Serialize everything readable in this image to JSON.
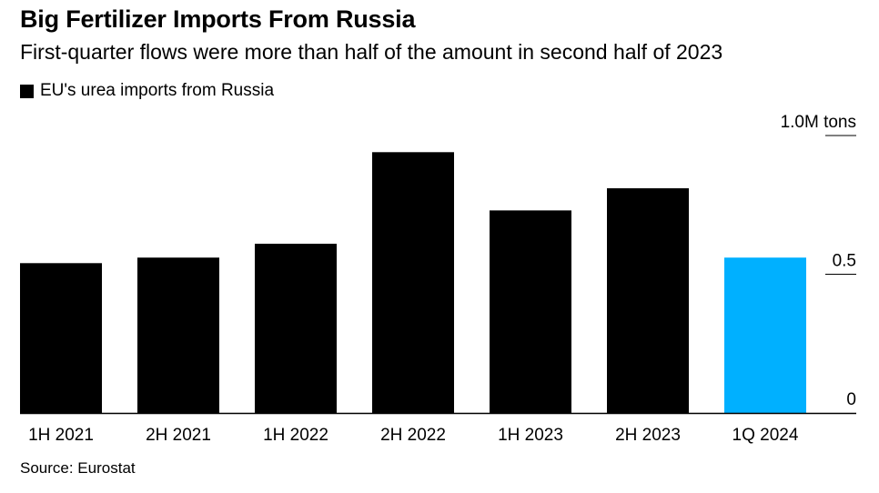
{
  "title": "Big Fertilizer Imports From Russia",
  "subtitle": "First-quarter flows were more than half of the amount in second half of 2023",
  "source": "Source: Eurostat",
  "colors": {
    "default_bar": "#000000",
    "highlight_bar": "#00b0ff",
    "axis": "#000000",
    "tick": "#000000"
  },
  "chart_data": {
    "type": "bar",
    "title": "Big Fertilizer Imports From Russia",
    "subtitle": "First-quarter flows were more than half of the amount in second half of 2023",
    "categories": [
      "1H 2021",
      "2H 2021",
      "1H 2022",
      "2H 2022",
      "1H 2023",
      "2H 2023",
      "1Q 2024"
    ],
    "series": [
      {
        "name": "EU's urea imports from Russia",
        "values": [
          0.54,
          0.56,
          0.61,
          0.94,
          0.73,
          0.81,
          0.56
        ]
      }
    ],
    "highlight_index": 6,
    "ylim": [
      0,
      1.0
    ],
    "yticks": [
      {
        "value": 0,
        "label": "0"
      },
      {
        "value": 0.5,
        "label": "0.5"
      },
      {
        "value": 1.0,
        "label": "1.0M tons"
      }
    ],
    "ylabel": "",
    "xlabel": "",
    "grid": false,
    "legend_position": "top-left",
    "y_axis_position": "right"
  }
}
